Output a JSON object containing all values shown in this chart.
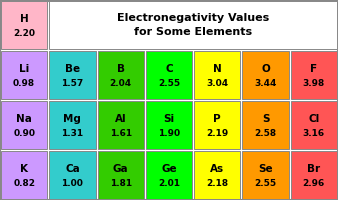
{
  "title": "Electronegativity Values\nfor Some Elements",
  "cells": [
    {
      "element": "H",
      "value": "2.20",
      "row": 0,
      "col": 0,
      "color": "#FFB6C8"
    },
    {
      "element": "Li",
      "value": "0.98",
      "row": 1,
      "col": 0,
      "color": "#CC99FF"
    },
    {
      "element": "Be",
      "value": "1.57",
      "row": 1,
      "col": 1,
      "color": "#33CCCC"
    },
    {
      "element": "B",
      "value": "2.04",
      "row": 1,
      "col": 2,
      "color": "#33CC00"
    },
    {
      "element": "C",
      "value": "2.55",
      "row": 1,
      "col": 3,
      "color": "#00FF00"
    },
    {
      "element": "N",
      "value": "3.04",
      "row": 1,
      "col": 4,
      "color": "#FFFF00"
    },
    {
      "element": "O",
      "value": "3.44",
      "row": 1,
      "col": 5,
      "color": "#FF9900"
    },
    {
      "element": "F",
      "value": "3.98",
      "row": 1,
      "col": 6,
      "color": "#FF5555"
    },
    {
      "element": "Na",
      "value": "0.90",
      "row": 2,
      "col": 0,
      "color": "#CC99FF"
    },
    {
      "element": "Mg",
      "value": "1.31",
      "row": 2,
      "col": 1,
      "color": "#33CCCC"
    },
    {
      "element": "Al",
      "value": "1.61",
      "row": 2,
      "col": 2,
      "color": "#33CC00"
    },
    {
      "element": "Si",
      "value": "1.90",
      "row": 2,
      "col": 3,
      "color": "#00FF00"
    },
    {
      "element": "P",
      "value": "2.19",
      "row": 2,
      "col": 4,
      "color": "#FFFF00"
    },
    {
      "element": "S",
      "value": "2.58",
      "row": 2,
      "col": 5,
      "color": "#FF9900"
    },
    {
      "element": "Cl",
      "value": "3.16",
      "row": 2,
      "col": 6,
      "color": "#FF5555"
    },
    {
      "element": "K",
      "value": "0.82",
      "row": 3,
      "col": 0,
      "color": "#CC99FF"
    },
    {
      "element": "Ca",
      "value": "1.00",
      "row": 3,
      "col": 1,
      "color": "#33CCCC"
    },
    {
      "element": "Ga",
      "value": "1.81",
      "row": 3,
      "col": 2,
      "color": "#33CC00"
    },
    {
      "element": "Ge",
      "value": "2.01",
      "row": 3,
      "col": 3,
      "color": "#00FF00"
    },
    {
      "element": "As",
      "value": "2.18",
      "row": 3,
      "col": 4,
      "color": "#FFFF00"
    },
    {
      "element": "Se",
      "value": "2.55",
      "row": 3,
      "col": 5,
      "color": "#FF9900"
    },
    {
      "element": "Br",
      "value": "2.96",
      "row": 3,
      "col": 6,
      "color": "#FF5555"
    }
  ],
  "num_rows": 4,
  "num_cols": 7,
  "border_color": "#888888",
  "elem_fontsize": 7.5,
  "val_fontsize": 6.5,
  "title_fontsize": 8.0,
  "fig_width": 3.38,
  "fig_height": 2.0,
  "dpi": 100
}
